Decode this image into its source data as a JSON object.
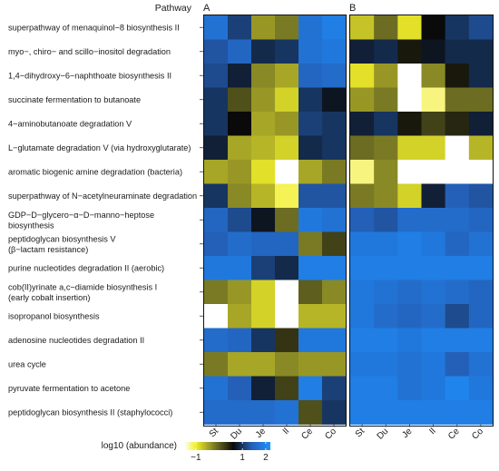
{
  "chart_data": {
    "type": "heatmap",
    "header": "Pathway",
    "panels": [
      "A",
      "B"
    ],
    "rows": [
      "superpathway of menaquinol−8 biosynthesis II",
      "myo−, chiro− and scillo−inositol degradation",
      "1,4−dihydroxy−6−naphthoate biosynthesis II",
      "succinate fermentation to butanoate",
      "4−aminobutanoate degradation V",
      "L−glutamate degradation V (via hydroxyglutarate)",
      "aromatic biogenic amine degradation (bacteria)",
      "superpathway of N−acetylneuraminate degradation",
      [
        "GDP−D−glycero−&alpha;−D−manno−heptose",
        "biosynthesis"
      ],
      [
        "peptidoglycan biosynthesis V",
        "(&beta;−lactam resistance)"
      ],
      "purine nucleotides degradation II (aerobic)",
      [
        "cob(II)yrinate a,c−diamide biosynthesis I",
        "(early cobalt insertion)"
      ],
      "isopropanol biosynthesis",
      "adenosine nucleotides degradation II",
      "urea cycle",
      "pyruvate fermentation to acetone",
      "peptidoglycan biosynthesis II (staphylococci)"
    ],
    "columns": [
      "St",
      "Du",
      "Je",
      "Il",
      "Ce",
      "Co"
    ],
    "values_A": [
      [
        1.7,
        1.1,
        -0.4,
        -0.2,
        1.7,
        1.9
      ],
      [
        1.3,
        1.5,
        0.9,
        1.0,
        1.7,
        1.8
      ],
      [
        1.2,
        0.8,
        -0.3,
        -0.5,
        1.5,
        1.6
      ],
      [
        1.0,
        0.1,
        -0.4,
        -0.8,
        1.0,
        0.7
      ],
      [
        1.0,
        0.6,
        -0.5,
        -0.4,
        1.1,
        1.0
      ],
      [
        0.8,
        -0.5,
        -0.6,
        -0.8,
        0.9,
        1.0
      ],
      [
        -0.5,
        -0.4,
        -0.9,
        -1.5,
        -0.5,
        -0.2
      ],
      [
        1.0,
        -0.3,
        -0.6,
        -1.1,
        1.3,
        1.3
      ],
      [
        1.5,
        1.2,
        0.7,
        -0.1,
        1.8,
        1.7
      ],
      [
        1.4,
        1.6,
        1.5,
        1.5,
        -0.2,
        0.2
      ],
      [
        1.8,
        1.8,
        1.1,
        0.9,
        1.9,
        1.9
      ],
      [
        -0.2,
        -0.4,
        -0.8,
        -1.5,
        0.0,
        -0.3
      ],
      [
        -1.5,
        -0.5,
        -0.8,
        -1.5,
        -0.6,
        -0.6
      ],
      [
        1.6,
        1.5,
        1.0,
        0.3,
        1.8,
        1.8
      ],
      [
        -0.2,
        -0.5,
        -0.5,
        -0.3,
        -0.4,
        -0.4
      ],
      [
        1.7,
        1.4,
        0.8,
        0.2,
        1.9,
        1.1
      ],
      [
        1.6,
        1.6,
        1.6,
        1.7,
        0.1,
        1.0
      ]
    ],
    "values_B": [
      [
        -0.7,
        -0.1,
        -0.9,
        0.6,
        1.0,
        1.2
      ],
      [
        0.8,
        0.9,
        0.5,
        0.7,
        0.9,
        0.9
      ],
      [
        -0.9,
        -0.4,
        -1.7,
        -0.3,
        0.5,
        0.9
      ],
      [
        -0.4,
        -0.2,
        -1.7,
        -1.2,
        -0.1,
        -0.1
      ],
      [
        0.8,
        1.0,
        0.5,
        0.2,
        0.4,
        0.8
      ],
      [
        -0.1,
        -0.2,
        -0.8,
        -0.8,
        -1.7,
        -0.6
      ],
      [
        -1.2,
        -0.3,
        -1.5,
        -1.5,
        -1.5,
        -1.5
      ],
      [
        -0.2,
        -0.3,
        -0.8,
        0.8,
        1.4,
        1.3
      ],
      [
        1.4,
        1.3,
        1.6,
        1.6,
        1.6,
        1.5
      ],
      [
        1.8,
        1.8,
        1.9,
        1.8,
        1.5,
        1.7
      ],
      [
        1.9,
        1.9,
        1.9,
        1.9,
        1.9,
        1.9
      ],
      [
        1.8,
        1.7,
        1.6,
        1.7,
        1.6,
        1.5
      ],
      [
        1.8,
        1.6,
        1.5,
        1.6,
        1.2,
        1.5
      ],
      [
        1.9,
        1.9,
        1.8,
        1.9,
        1.9,
        1.9
      ],
      [
        1.8,
        1.8,
        1.7,
        1.8,
        1.4,
        1.7
      ],
      [
        1.9,
        1.9,
        1.7,
        1.8,
        2.0,
        1.8
      ],
      [
        1.9,
        1.9,
        1.9,
        1.9,
        1.9,
        1.9
      ]
    ],
    "colorbar": {
      "title": "log10 (abundance)",
      "ticks": [
        "−1",
        "1",
        "2"
      ],
      "tick_values": [
        -1,
        1,
        2
      ],
      "range": [
        -1.5,
        2.2
      ],
      "colors": [
        "#ffffff",
        "#f1ef2a",
        "#7a7a25",
        "#0a0a0a",
        "#2460b8",
        "#1e90ff"
      ]
    }
  }
}
